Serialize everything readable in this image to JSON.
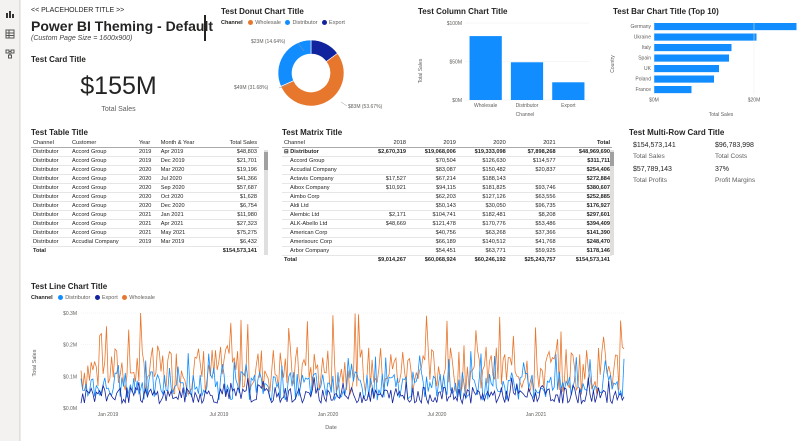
{
  "report": {
    "placeholder_title": "<< PLACEHOLDER TITLE >>",
    "theme_title": "Power BI Theming - Default",
    "page_size_note": "(Custom Page Size = 1600x900)"
  },
  "card": {
    "title": "Test Card Title",
    "value": "$155M",
    "label": "Total Sales"
  },
  "donut": {
    "title": "Test Donut Chart Title",
    "legend_title": "Channel",
    "legend": [
      "Wholesale",
      "Distributor",
      "Export"
    ],
    "colors": [
      "#E8772E",
      "#118DFF",
      "#12239E"
    ],
    "labels": [
      "$83M (53.67%)",
      "$49M (31.68%)",
      "$23M (14.64%)"
    ]
  },
  "column": {
    "title": "Test Column Chart Title",
    "ylabel": "Total Sales",
    "xlabel": "Channel",
    "yticks": [
      "$0M",
      "$50M",
      "$100M"
    ],
    "color": "#118DFF"
  },
  "bar": {
    "title": "Test Bar Chart Title (Top 10)",
    "ylabel": "Country",
    "xlabel": "Total Sales",
    "xticks": [
      "$0M",
      "$20M"
    ],
    "color": "#118DFF"
  },
  "table": {
    "title": "Test Table Title",
    "headers": [
      "Channel",
      "Customer",
      "Year",
      "Month & Year",
      "Total Sales"
    ],
    "rows": [
      [
        "Distributor",
        "Accord Group",
        "2019",
        "Apr 2019",
        "$48,803"
      ],
      [
        "Distributor",
        "Accord Group",
        "2019",
        "Dec 2019",
        "$21,701"
      ],
      [
        "Distributor",
        "Accord Group",
        "2020",
        "Mar 2020",
        "$19,196"
      ],
      [
        "Distributor",
        "Accord Group",
        "2020",
        "Jul 2020",
        "$41,366"
      ],
      [
        "Distributor",
        "Accord Group",
        "2020",
        "Sep 2020",
        "$57,687"
      ],
      [
        "Distributor",
        "Accord Group",
        "2020",
        "Oct 2020",
        "$1,628"
      ],
      [
        "Distributor",
        "Accord Group",
        "2020",
        "Dec 2020",
        "$6,754"
      ],
      [
        "Distributor",
        "Accord Group",
        "2021",
        "Jan 2021",
        "$11,980"
      ],
      [
        "Distributor",
        "Accord Group",
        "2021",
        "Apr 2021",
        "$27,323"
      ],
      [
        "Distributor",
        "Accord Group",
        "2021",
        "May 2021",
        "$75,275"
      ],
      [
        "Distributor",
        "Accudial Company",
        "2019",
        "Mar 2019",
        "$6,432"
      ]
    ],
    "total_label": "Total",
    "total_value": "$154,573,141"
  },
  "matrix": {
    "title": "Test Matrix Title",
    "headers": [
      "Channel",
      "2018",
      "2019",
      "2020",
      "2021",
      "Total"
    ],
    "group": [
      "Distributor",
      "$2,670,319",
      "$19,068,006",
      "$19,333,098",
      "$7,898,268",
      "$48,969,690"
    ],
    "rows": [
      [
        "Accord Group",
        "",
        "$70,504",
        "$126,630",
        "$114,577",
        "$311,711"
      ],
      [
        "Accudial Company",
        "",
        "$83,087",
        "$150,482",
        "$20,837",
        "$254,406"
      ],
      [
        "Actavis Company",
        "$17,527",
        "$67,214",
        "$188,143",
        "",
        "$272,884"
      ],
      [
        "Aibox Company",
        "$10,921",
        "$94,115",
        "$181,825",
        "$93,746",
        "$380,607"
      ],
      [
        "Aimbo Corp",
        "",
        "$62,203",
        "$127,126",
        "$63,556",
        "$252,885"
      ],
      [
        "Aldi Ltd",
        "",
        "$50,143",
        "$30,050",
        "$96,735",
        "$176,927"
      ],
      [
        "Alembic Ltd",
        "$2,171",
        "$104,741",
        "$182,481",
        "$8,208",
        "$297,601"
      ],
      [
        "ALK-Abello Ltd",
        "$48,669",
        "$121,478",
        "$170,776",
        "$53,486",
        "$394,409"
      ],
      [
        "American Corp",
        "",
        "$40,756",
        "$63,268",
        "$37,366",
        "$141,390"
      ],
      [
        "Amerisourc Corp",
        "",
        "$66,189",
        "$140,512",
        "$41,768",
        "$248,470"
      ],
      [
        "Arbor Company",
        "",
        "$54,451",
        "$63,771",
        "$59,925",
        "$178,146"
      ]
    ],
    "total": [
      "Total",
      "$9,014,267",
      "$60,068,924",
      "$60,246,192",
      "$25,243,757",
      "$154,573,141"
    ]
  },
  "multirow": {
    "title": "Test Multi-Row Card Title",
    "items": [
      {
        "value": "$154,573,141",
        "label": "Total Sales"
      },
      {
        "value": "$96,783,998",
        "label": "Total Costs"
      },
      {
        "value": "$57,789,143",
        "label": "Total Profits"
      },
      {
        "value": "37%",
        "label": "Profit Margins"
      }
    ]
  },
  "line": {
    "title": "Test Line Chart Title",
    "legend_title": "Channel",
    "legend": [
      "Distributor",
      "Export",
      "Wholesale"
    ],
    "colors": [
      "#118DFF",
      "#12239E",
      "#E8772E"
    ],
    "ylabel": "Total Sales",
    "xlabel": "Date",
    "yticks": [
      "$0.0M",
      "$0.1M",
      "$0.2M",
      "$0.3M"
    ],
    "xticks": [
      "Jan 2019",
      "Jul 2019",
      "Jan 2020",
      "Jul 2020",
      "Jan 2021"
    ]
  },
  "chart_data": [
    {
      "type": "pie",
      "title": "Test Donut Chart Title",
      "categories": [
        "Wholesale",
        "Distributor",
        "Export"
      ],
      "values": [
        83,
        49,
        23
      ],
      "percent": [
        53.67,
        31.68,
        14.64
      ]
    },
    {
      "type": "bar",
      "title": "Test Column Chart Title",
      "categories": [
        "Wholesale",
        "Distributor",
        "Export"
      ],
      "values": [
        83,
        49,
        23
      ],
      "ylim": [
        0,
        100
      ],
      "xlabel": "Channel",
      "ylabel": "Total Sales"
    },
    {
      "type": "bar",
      "orientation": "horizontal",
      "title": "Test Bar Chart Title (Top 10)",
      "categories": [
        "Germany",
        "Ukraine",
        "Italy",
        "Spain",
        "UK",
        "Poland",
        "France"
      ],
      "values": [
        28.5,
        20.5,
        15.5,
        15,
        13,
        12,
        7.5
      ],
      "xlim": [
        0,
        30
      ],
      "xlabel": "Total Sales",
      "ylabel": "Country"
    },
    {
      "type": "line",
      "title": "Test Line Chart Title",
      "xlabel": "Date",
      "ylabel": "Total Sales",
      "ylim": [
        0,
        0.3
      ],
      "x_range": [
        "Nov 2018",
        "Jul 2021"
      ],
      "series": [
        {
          "name": "Wholesale",
          "approx_mean": 0.12,
          "approx_max": 0.31
        },
        {
          "name": "Distributor",
          "approx_mean": 0.07,
          "approx_max": 0.18
        },
        {
          "name": "Export",
          "approx_mean": 0.04,
          "approx_max": 0.1
        }
      ]
    }
  ]
}
